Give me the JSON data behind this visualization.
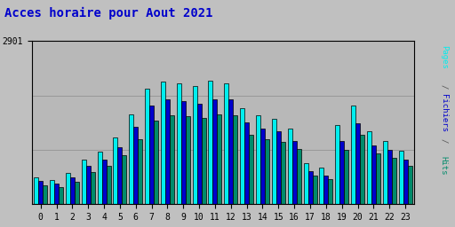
{
  "title": "Acces horaire pour Aout 2021",
  "title_color": "#0000cc",
  "title_fontsize": 10,
  "hours": [
    0,
    1,
    2,
    3,
    4,
    5,
    6,
    7,
    8,
    9,
    10,
    11,
    12,
    13,
    14,
    15,
    16,
    17,
    18,
    19,
    20,
    21,
    22,
    23
  ],
  "pages": [
    480,
    430,
    560,
    800,
    930,
    1190,
    1600,
    2050,
    2180,
    2150,
    2100,
    2200,
    2140,
    1700,
    1580,
    1520,
    1350,
    730,
    650,
    1400,
    1750,
    1300,
    1120,
    950
  ],
  "fichiers": [
    410,
    365,
    480,
    680,
    790,
    1020,
    1370,
    1750,
    1860,
    1830,
    1790,
    1870,
    1870,
    1450,
    1340,
    1290,
    1130,
    590,
    510,
    1130,
    1440,
    1050,
    960,
    800
  ],
  "hits": [
    340,
    310,
    400,
    580,
    680,
    870,
    1160,
    1490,
    1580,
    1560,
    1530,
    1600,
    1580,
    1240,
    1150,
    1110,
    980,
    510,
    440,
    970,
    1240,
    900,
    820,
    690
  ],
  "ymax": 2901,
  "ylabel_text": "2901",
  "bar_color_pages": "#00eeee",
  "bar_color_fichiers": "#0000cc",
  "bar_color_hits": "#008b6a",
  "bg_color": "#c0c0c0",
  "plot_bg_color": "#b8b8b8",
  "border_color": "#000000",
  "legend_pages": "Pages",
  "legend_fichiers": "Fichiers",
  "legend_hits": "Hits",
  "grid_color": "#999999"
}
